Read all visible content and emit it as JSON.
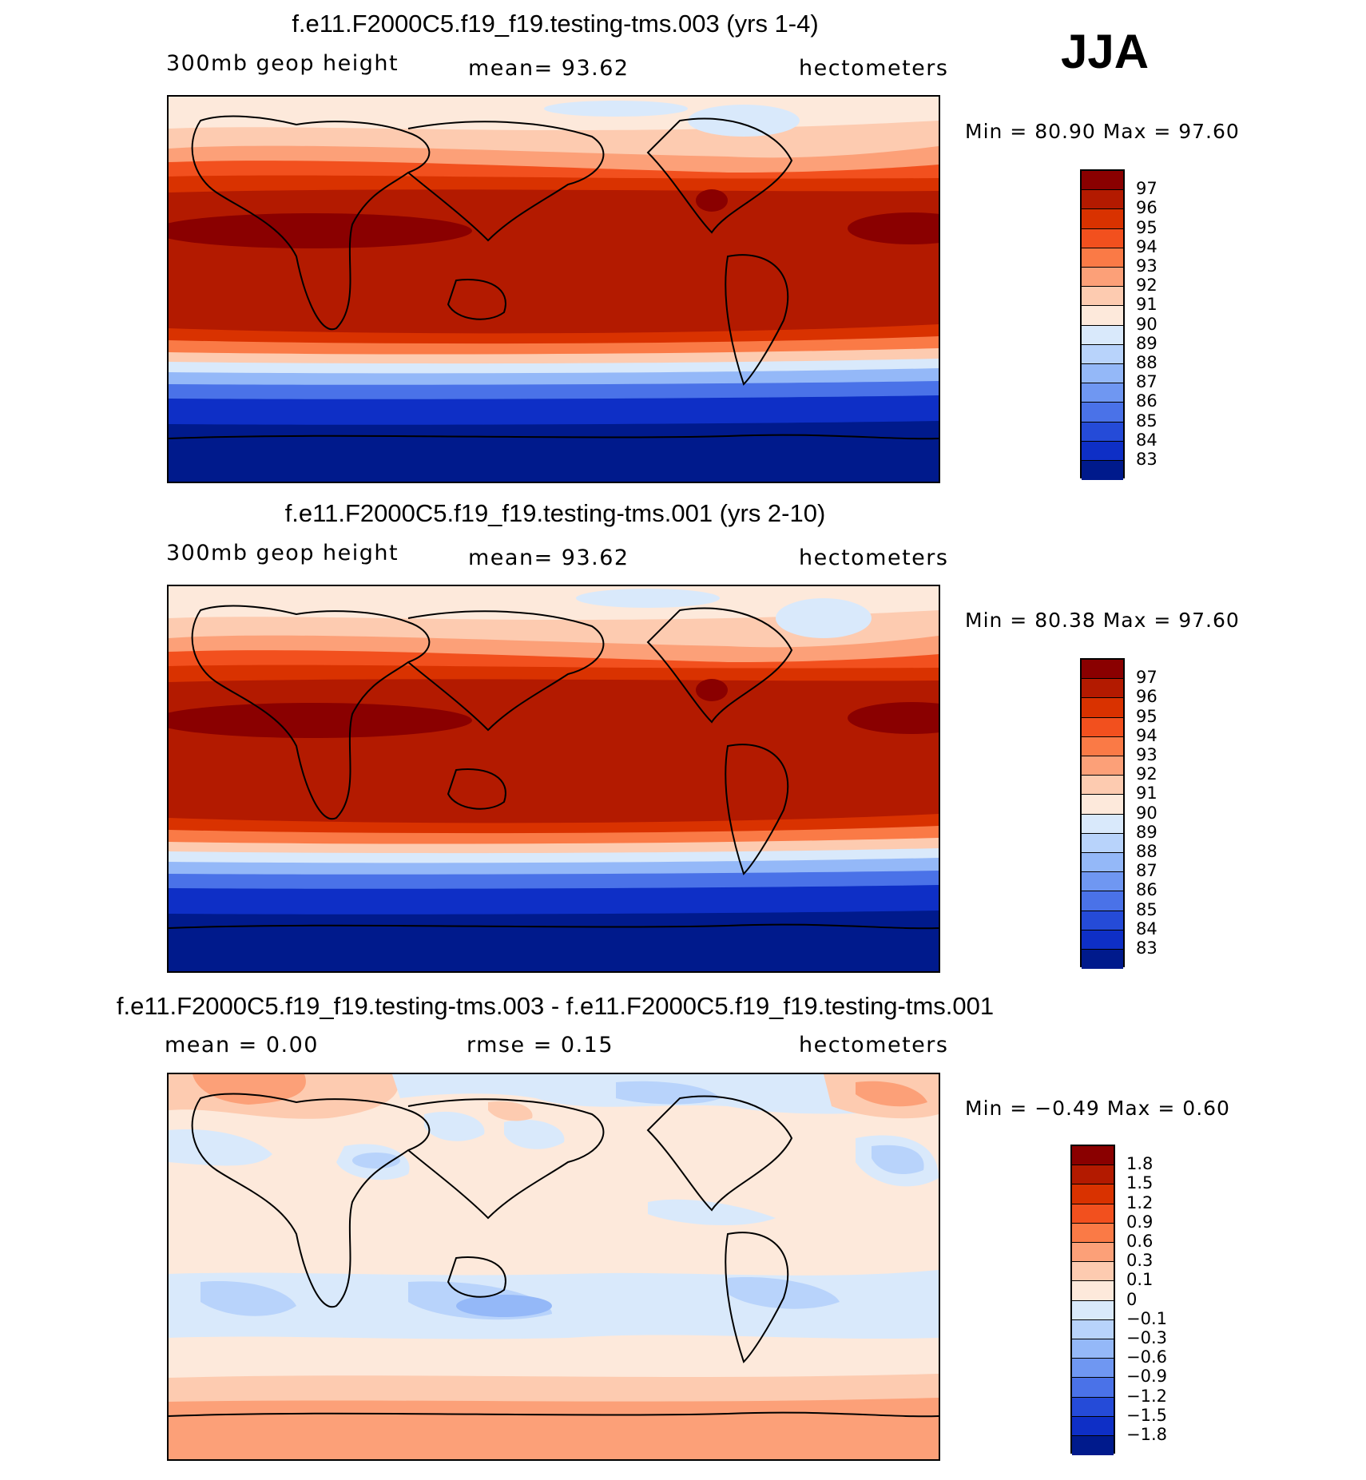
{
  "season": "JJA",
  "panels": [
    {
      "id": "top",
      "title": "f.e11.F2000C5.f19_f19.testing-tms.003 (yrs 1-4)",
      "left_label": "300mb geop height",
      "center_label": "mean=   93.62",
      "right_label": "hectometers",
      "min_max": "Min =   80.90 Max =   97.60",
      "colorbar": {
        "colors": [
          "#8a0000",
          "#b31a00",
          "#d93200",
          "#f2501e",
          "#fa7a46",
          "#fca078",
          "#fdcbb0",
          "#fde9db",
          "#d9e9fb",
          "#b8d3fb",
          "#94b8f8",
          "#6f97f2",
          "#4a72e8",
          "#254bd8",
          "#0e2fc6",
          "#001a8c"
        ],
        "labels": [
          "97",
          "96",
          "95",
          "94",
          "93",
          "92",
          "91",
          "90",
          "89",
          "88",
          "87",
          "86",
          "85",
          "84",
          "83"
        ]
      }
    },
    {
      "id": "middle",
      "title": "f.e11.F2000C5.f19_f19.testing-tms.001 (yrs 2-10)",
      "left_label": "300mb geop height",
      "center_label": "mean=   93.62",
      "right_label": "hectometers",
      "min_max": "Min =   80.38 Max =   97.60",
      "colorbar": {
        "colors": [
          "#8a0000",
          "#b31a00",
          "#d93200",
          "#f2501e",
          "#fa7a46",
          "#fca078",
          "#fdcbb0",
          "#fde9db",
          "#d9e9fb",
          "#b8d3fb",
          "#94b8f8",
          "#6f97f2",
          "#4a72e8",
          "#254bd8",
          "#0e2fc6",
          "#001a8c"
        ],
        "labels": [
          "97",
          "96",
          "95",
          "94",
          "93",
          "92",
          "91",
          "90",
          "89",
          "88",
          "87",
          "86",
          "85",
          "84",
          "83"
        ]
      }
    },
    {
      "id": "bottom",
      "title": "f.e11.F2000C5.f19_f19.testing-tms.003 - f.e11.F2000C5.f19_f19.testing-tms.001",
      "left_label": "mean =    0.00",
      "center_label": "rmse =    0.15",
      "right_label": "hectometers",
      "min_max": "Min =  −0.49 Max =    0.60",
      "colorbar": {
        "colors": [
          "#8a0000",
          "#b31a00",
          "#d93200",
          "#f2501e",
          "#fa7a46",
          "#fca078",
          "#fdcbb0",
          "#fde9db",
          "#d9e9fb",
          "#b8d3fb",
          "#94b8f8",
          "#6f97f2",
          "#4a72e8",
          "#254bd8",
          "#0e2fc6",
          "#001a8c"
        ],
        "labels": [
          "1.8",
          "1.5",
          "1.2",
          "0.9",
          "0.6",
          "0.3",
          "0.1",
          "0",
          "−0.1",
          "−0.3",
          "−0.6",
          "−0.9",
          "−1.2",
          "−1.5",
          "−1.8"
        ]
      }
    }
  ]
}
